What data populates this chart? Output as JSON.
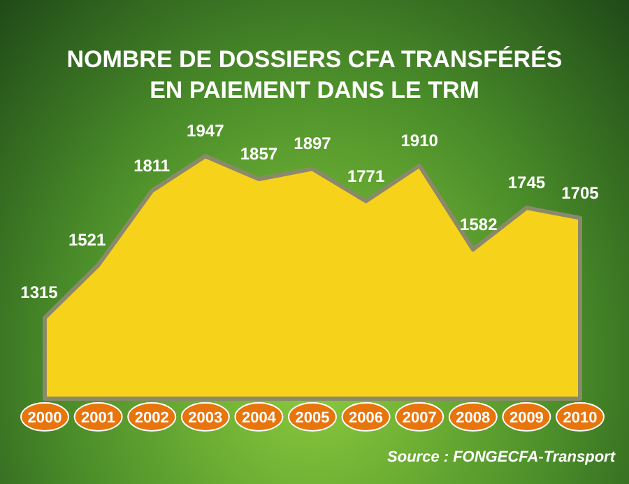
{
  "chart_data": {
    "type": "area",
    "title": "NOMBRE DE DOSSIERS CFA TRANSFÉRÉS\nEN PAIEMENT DANS LE TRM",
    "categories": [
      "2000",
      "2001",
      "2002",
      "2003",
      "2004",
      "2005",
      "2006",
      "2007",
      "2008",
      "2009",
      "2010"
    ],
    "series": [
      {
        "color": "#f7d21a",
        "values": [
          1315,
          1521,
          1811,
          1947,
          1857,
          1897,
          1771,
          1910,
          1582,
          1745,
          1705
        ]
      }
    ],
    "data_labels": true,
    "annotations": [
      "Source : FONGECFA-Transport"
    ]
  }
}
